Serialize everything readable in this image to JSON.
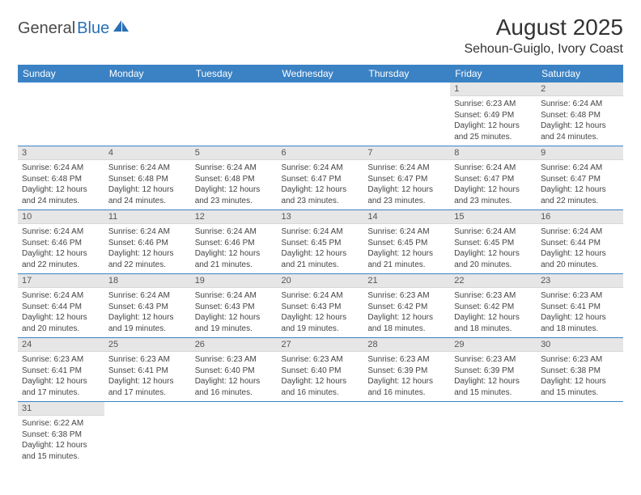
{
  "brand": {
    "general": "General",
    "blue": "Blue"
  },
  "title": "August 2025",
  "location": "Sehoun-Guiglo, Ivory Coast",
  "weekdays": [
    "Sunday",
    "Monday",
    "Tuesday",
    "Wednesday",
    "Thursday",
    "Friday",
    "Saturday"
  ],
  "colors": {
    "header_bg": "#3b82c4",
    "header_fg": "#ffffff",
    "daynum_bg": "#e6e6e6",
    "row_border": "#3b82c4",
    "logo_blue": "#2a6fb5"
  },
  "weeks": [
    [
      null,
      null,
      null,
      null,
      null,
      {
        "n": "1",
        "sr": "Sunrise: 6:23 AM",
        "ss": "Sunset: 6:49 PM",
        "dl1": "Daylight: 12 hours",
        "dl2": "and 25 minutes."
      },
      {
        "n": "2",
        "sr": "Sunrise: 6:24 AM",
        "ss": "Sunset: 6:48 PM",
        "dl1": "Daylight: 12 hours",
        "dl2": "and 24 minutes."
      }
    ],
    [
      {
        "n": "3",
        "sr": "Sunrise: 6:24 AM",
        "ss": "Sunset: 6:48 PM",
        "dl1": "Daylight: 12 hours",
        "dl2": "and 24 minutes."
      },
      {
        "n": "4",
        "sr": "Sunrise: 6:24 AM",
        "ss": "Sunset: 6:48 PM",
        "dl1": "Daylight: 12 hours",
        "dl2": "and 24 minutes."
      },
      {
        "n": "5",
        "sr": "Sunrise: 6:24 AM",
        "ss": "Sunset: 6:48 PM",
        "dl1": "Daylight: 12 hours",
        "dl2": "and 23 minutes."
      },
      {
        "n": "6",
        "sr": "Sunrise: 6:24 AM",
        "ss": "Sunset: 6:47 PM",
        "dl1": "Daylight: 12 hours",
        "dl2": "and 23 minutes."
      },
      {
        "n": "7",
        "sr": "Sunrise: 6:24 AM",
        "ss": "Sunset: 6:47 PM",
        "dl1": "Daylight: 12 hours",
        "dl2": "and 23 minutes."
      },
      {
        "n": "8",
        "sr": "Sunrise: 6:24 AM",
        "ss": "Sunset: 6:47 PM",
        "dl1": "Daylight: 12 hours",
        "dl2": "and 23 minutes."
      },
      {
        "n": "9",
        "sr": "Sunrise: 6:24 AM",
        "ss": "Sunset: 6:47 PM",
        "dl1": "Daylight: 12 hours",
        "dl2": "and 22 minutes."
      }
    ],
    [
      {
        "n": "10",
        "sr": "Sunrise: 6:24 AM",
        "ss": "Sunset: 6:46 PM",
        "dl1": "Daylight: 12 hours",
        "dl2": "and 22 minutes."
      },
      {
        "n": "11",
        "sr": "Sunrise: 6:24 AM",
        "ss": "Sunset: 6:46 PM",
        "dl1": "Daylight: 12 hours",
        "dl2": "and 22 minutes."
      },
      {
        "n": "12",
        "sr": "Sunrise: 6:24 AM",
        "ss": "Sunset: 6:46 PM",
        "dl1": "Daylight: 12 hours",
        "dl2": "and 21 minutes."
      },
      {
        "n": "13",
        "sr": "Sunrise: 6:24 AM",
        "ss": "Sunset: 6:45 PM",
        "dl1": "Daylight: 12 hours",
        "dl2": "and 21 minutes."
      },
      {
        "n": "14",
        "sr": "Sunrise: 6:24 AM",
        "ss": "Sunset: 6:45 PM",
        "dl1": "Daylight: 12 hours",
        "dl2": "and 21 minutes."
      },
      {
        "n": "15",
        "sr": "Sunrise: 6:24 AM",
        "ss": "Sunset: 6:45 PM",
        "dl1": "Daylight: 12 hours",
        "dl2": "and 20 minutes."
      },
      {
        "n": "16",
        "sr": "Sunrise: 6:24 AM",
        "ss": "Sunset: 6:44 PM",
        "dl1": "Daylight: 12 hours",
        "dl2": "and 20 minutes."
      }
    ],
    [
      {
        "n": "17",
        "sr": "Sunrise: 6:24 AM",
        "ss": "Sunset: 6:44 PM",
        "dl1": "Daylight: 12 hours",
        "dl2": "and 20 minutes."
      },
      {
        "n": "18",
        "sr": "Sunrise: 6:24 AM",
        "ss": "Sunset: 6:43 PM",
        "dl1": "Daylight: 12 hours",
        "dl2": "and 19 minutes."
      },
      {
        "n": "19",
        "sr": "Sunrise: 6:24 AM",
        "ss": "Sunset: 6:43 PM",
        "dl1": "Daylight: 12 hours",
        "dl2": "and 19 minutes."
      },
      {
        "n": "20",
        "sr": "Sunrise: 6:24 AM",
        "ss": "Sunset: 6:43 PM",
        "dl1": "Daylight: 12 hours",
        "dl2": "and 19 minutes."
      },
      {
        "n": "21",
        "sr": "Sunrise: 6:23 AM",
        "ss": "Sunset: 6:42 PM",
        "dl1": "Daylight: 12 hours",
        "dl2": "and 18 minutes."
      },
      {
        "n": "22",
        "sr": "Sunrise: 6:23 AM",
        "ss": "Sunset: 6:42 PM",
        "dl1": "Daylight: 12 hours",
        "dl2": "and 18 minutes."
      },
      {
        "n": "23",
        "sr": "Sunrise: 6:23 AM",
        "ss": "Sunset: 6:41 PM",
        "dl1": "Daylight: 12 hours",
        "dl2": "and 18 minutes."
      }
    ],
    [
      {
        "n": "24",
        "sr": "Sunrise: 6:23 AM",
        "ss": "Sunset: 6:41 PM",
        "dl1": "Daylight: 12 hours",
        "dl2": "and 17 minutes."
      },
      {
        "n": "25",
        "sr": "Sunrise: 6:23 AM",
        "ss": "Sunset: 6:41 PM",
        "dl1": "Daylight: 12 hours",
        "dl2": "and 17 minutes."
      },
      {
        "n": "26",
        "sr": "Sunrise: 6:23 AM",
        "ss": "Sunset: 6:40 PM",
        "dl1": "Daylight: 12 hours",
        "dl2": "and 16 minutes."
      },
      {
        "n": "27",
        "sr": "Sunrise: 6:23 AM",
        "ss": "Sunset: 6:40 PM",
        "dl1": "Daylight: 12 hours",
        "dl2": "and 16 minutes."
      },
      {
        "n": "28",
        "sr": "Sunrise: 6:23 AM",
        "ss": "Sunset: 6:39 PM",
        "dl1": "Daylight: 12 hours",
        "dl2": "and 16 minutes."
      },
      {
        "n": "29",
        "sr": "Sunrise: 6:23 AM",
        "ss": "Sunset: 6:39 PM",
        "dl1": "Daylight: 12 hours",
        "dl2": "and 15 minutes."
      },
      {
        "n": "30",
        "sr": "Sunrise: 6:23 AM",
        "ss": "Sunset: 6:38 PM",
        "dl1": "Daylight: 12 hours",
        "dl2": "and 15 minutes."
      }
    ],
    [
      {
        "n": "31",
        "sr": "Sunrise: 6:22 AM",
        "ss": "Sunset: 6:38 PM",
        "dl1": "Daylight: 12 hours",
        "dl2": "and 15 minutes."
      },
      null,
      null,
      null,
      null,
      null,
      null
    ]
  ]
}
